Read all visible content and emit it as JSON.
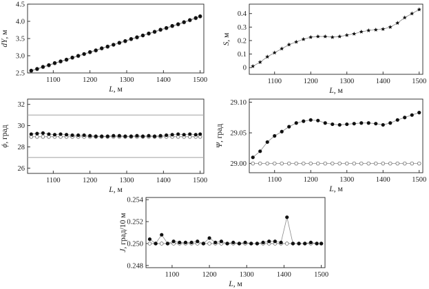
{
  "chart_data": [
    {
      "id": "dy",
      "type": "line",
      "xlabel_var": "L",
      "xlabel_unit": ", м",
      "ylabel_var": "dY",
      "ylabel_unit": ", м",
      "xlim": [
        1030,
        1510
      ],
      "ylim": [
        2.5,
        4.5
      ],
      "xticks": [
        1100,
        1200,
        1300,
        1400,
        1500
      ],
      "xtick_labels": [
        "1100",
        "1200",
        "1300",
        "1400",
        "1500"
      ],
      "yticks": [
        2.5,
        3.0,
        3.5,
        4.0,
        4.5
      ],
      "ytick_labels": [
        "2.5",
        "3.0",
        "3.5",
        "4.0",
        "4.5"
      ],
      "series": [
        {
          "marker": "filled",
          "color": "#111111",
          "line": "#888888",
          "x": [
            1040,
            1056,
            1072,
            1088,
            1104,
            1120,
            1136,
            1152,
            1168,
            1184,
            1200,
            1216,
            1232,
            1248,
            1264,
            1280,
            1296,
            1312,
            1328,
            1344,
            1360,
            1376,
            1392,
            1408,
            1424,
            1440,
            1456,
            1472,
            1488,
            1500
          ],
          "y": [
            2.57,
            2.62,
            2.68,
            2.73,
            2.79,
            2.84,
            2.89,
            2.95,
            3.0,
            3.05,
            3.11,
            3.16,
            3.22,
            3.27,
            3.32,
            3.38,
            3.43,
            3.49,
            3.54,
            3.59,
            3.65,
            3.7,
            3.76,
            3.81,
            3.87,
            3.92,
            3.98,
            4.04,
            4.1,
            4.15
          ]
        },
        {
          "marker": "open",
          "color": "#666666",
          "line": "#888888",
          "x": [
            1040,
            1056,
            1072,
            1088,
            1104,
            1120,
            1136,
            1152,
            1168,
            1184,
            1200,
            1216,
            1232,
            1248,
            1264,
            1280,
            1296,
            1312,
            1328,
            1344,
            1360,
            1376,
            1392,
            1408,
            1424,
            1440,
            1456,
            1472,
            1488,
            1500
          ],
          "y": [
            2.56,
            2.61,
            2.67,
            2.72,
            2.78,
            2.83,
            2.88,
            2.94,
            2.99,
            3.05,
            3.1,
            3.15,
            3.21,
            3.26,
            3.32,
            3.37,
            3.42,
            3.48,
            3.53,
            3.59,
            3.64,
            3.69,
            3.75,
            3.8,
            3.86,
            3.91,
            3.97,
            4.03,
            4.09,
            4.14
          ]
        }
      ]
    },
    {
      "id": "s",
      "type": "line",
      "xlabel_var": "L",
      "xlabel_unit": ", м",
      "ylabel_var": "S",
      "ylabel_unit": ", м",
      "xlim": [
        1030,
        1510
      ],
      "ylim": [
        -0.05,
        0.47
      ],
      "xticks": [
        1100,
        1200,
        1300,
        1400,
        1500
      ],
      "xtick_labels": [
        "1100",
        "1200",
        "1300",
        "1400",
        "1500"
      ],
      "yticks": [
        0,
        0.1,
        0.2,
        0.3,
        0.4
      ],
      "ytick_labels": [
        "0",
        "0.1",
        "0.2",
        "0.3",
        "0.4"
      ],
      "series": [
        {
          "marker": "star",
          "color": "#111111",
          "line": "#888888",
          "x": [
            1040,
            1060,
            1080,
            1100,
            1120,
            1140,
            1160,
            1180,
            1200,
            1220,
            1240,
            1260,
            1280,
            1300,
            1320,
            1340,
            1360,
            1380,
            1400,
            1420,
            1440,
            1460,
            1480,
            1500
          ],
          "y": [
            0.01,
            0.04,
            0.08,
            0.11,
            0.14,
            0.17,
            0.19,
            0.21,
            0.225,
            0.23,
            0.23,
            0.225,
            0.23,
            0.24,
            0.25,
            0.265,
            0.275,
            0.28,
            0.285,
            0.3,
            0.33,
            0.37,
            0.4,
            0.43
          ]
        }
      ]
    },
    {
      "id": "phi",
      "type": "line",
      "xlabel_var": "L",
      "xlabel_unit": ", м",
      "ylabel_var": "ϕ",
      "ylabel_unit": ", град",
      "xlim": [
        1030,
        1510
      ],
      "ylim": [
        25.5,
        32.5
      ],
      "xticks": [
        1100,
        1200,
        1300,
        1400,
        1500
      ],
      "xtick_labels": [
        "1100",
        "1200",
        "1300",
        "1400",
        "1500"
      ],
      "yticks": [
        26,
        28,
        30,
        32
      ],
      "ytick_labels": [
        "26",
        "28",
        "30",
        "32"
      ],
      "hlines": [
        {
          "y": 31,
          "color": "#aaaaaa"
        },
        {
          "y": 27,
          "color": "#aaaaaa"
        }
      ],
      "series": [
        {
          "marker": "filled",
          "color": "#111111",
          "line": "#888888",
          "x": [
            1040,
            1056,
            1072,
            1088,
            1104,
            1120,
            1136,
            1152,
            1168,
            1184,
            1200,
            1216,
            1232,
            1248,
            1264,
            1280,
            1296,
            1312,
            1328,
            1344,
            1360,
            1376,
            1392,
            1408,
            1424,
            1440,
            1456,
            1472,
            1488,
            1500
          ],
          "y": [
            29.2,
            29.25,
            29.3,
            29.2,
            29.15,
            29.2,
            29.15,
            29.1,
            29.1,
            29.1,
            29.05,
            29.0,
            29.0,
            29.0,
            29.05,
            29.05,
            29.0,
            29.0,
            29.05,
            29.0,
            29.05,
            29.0,
            29.05,
            29.1,
            29.15,
            29.2,
            29.15,
            29.2,
            29.15,
            29.2
          ]
        },
        {
          "marker": "open",
          "color": "#666666",
          "line": "#888888",
          "x": [
            1040,
            1056,
            1072,
            1088,
            1104,
            1120,
            1136,
            1152,
            1168,
            1184,
            1200,
            1216,
            1232,
            1248,
            1264,
            1280,
            1296,
            1312,
            1328,
            1344,
            1360,
            1376,
            1392,
            1408,
            1424,
            1440,
            1456,
            1472,
            1488,
            1500
          ],
          "y": [
            28.95,
            28.95,
            28.95,
            28.95,
            28.95,
            28.95,
            28.95,
            28.95,
            28.95,
            28.95,
            28.95,
            28.95,
            28.95,
            28.95,
            28.95,
            28.95,
            28.95,
            28.95,
            28.95,
            28.95,
            28.95,
            28.95,
            28.95,
            28.95,
            28.95,
            28.95,
            28.95,
            28.95,
            28.95,
            28.95
          ]
        }
      ]
    },
    {
      "id": "psi",
      "type": "line",
      "xlabel_var": "L",
      "xlabel_unit": ", м",
      "ylabel_var": "Ψ",
      "ylabel_unit": ", град",
      "xlim": [
        1030,
        1510
      ],
      "ylim": [
        28.985,
        29.105
      ],
      "xticks": [
        1100,
        1200,
        1300,
        1400,
        1500
      ],
      "xtick_labels": [
        "1100",
        "1200",
        "1300",
        "1400",
        "1500"
      ],
      "yticks": [
        29.0,
        29.05,
        29.1
      ],
      "ytick_labels": [
        "29.00",
        "29.05",
        "29.10"
      ],
      "series": [
        {
          "marker": "filled",
          "color": "#111111",
          "line": "#888888",
          "x": [
            1040,
            1060,
            1080,
            1100,
            1120,
            1140,
            1160,
            1180,
            1200,
            1220,
            1240,
            1260,
            1280,
            1300,
            1320,
            1340,
            1360,
            1380,
            1400,
            1420,
            1440,
            1460,
            1480,
            1500
          ],
          "y": [
            29.01,
            29.02,
            29.035,
            29.045,
            29.052,
            29.06,
            29.066,
            29.069,
            29.071,
            29.07,
            29.066,
            29.064,
            29.063,
            29.064,
            29.065,
            29.066,
            29.066,
            29.065,
            29.063,
            29.066,
            29.071,
            29.075,
            29.079,
            29.083
          ]
        },
        {
          "marker": "open",
          "color": "#666666",
          "line": "#888888",
          "x": [
            1040,
            1060,
            1080,
            1100,
            1120,
            1140,
            1160,
            1180,
            1200,
            1220,
            1240,
            1260,
            1280,
            1300,
            1320,
            1340,
            1360,
            1380,
            1400,
            1420,
            1440,
            1460,
            1480,
            1500
          ],
          "y": [
            29.0,
            29.0,
            29.0,
            29.0,
            29.0,
            29.0,
            29.0,
            29.0,
            29.0,
            29.0,
            29.0,
            29.0,
            29.0,
            29.0,
            29.0,
            29.0,
            29.0,
            29.0,
            29.0,
            29.0,
            29.0,
            29.0,
            29.0,
            29.0
          ]
        }
      ]
    },
    {
      "id": "j",
      "type": "line",
      "xlabel_var": "L",
      "xlabel_unit": ", м",
      "ylabel_var": "J",
      "ylabel_unit": ", град/10 м",
      "xlim": [
        1030,
        1510
      ],
      "ylim": [
        0.2478,
        0.2542
      ],
      "xticks": [
        1100,
        1200,
        1300,
        1400,
        1500
      ],
      "xtick_labels": [
        "1100",
        "1200",
        "1300",
        "1400",
        "1500"
      ],
      "yticks": [
        0.248,
        0.25,
        0.252,
        0.254
      ],
      "ytick_labels": [
        "0.248",
        "0.250",
        "0.252",
        "0.254"
      ],
      "series": [
        {
          "marker": "filled",
          "color": "#111111",
          "line": "#888888",
          "x": [
            1040,
            1056,
            1072,
            1088,
            1104,
            1120,
            1136,
            1152,
            1168,
            1184,
            1200,
            1216,
            1232,
            1248,
            1264,
            1280,
            1296,
            1312,
            1328,
            1344,
            1360,
            1376,
            1392,
            1408,
            1424,
            1440,
            1456,
            1472,
            1488,
            1500
          ],
          "y": [
            0.2504,
            0.25,
            0.2508,
            0.25,
            0.2502,
            0.2501,
            0.2501,
            0.2501,
            0.2502,
            0.25,
            0.2505,
            0.2501,
            0.2502,
            0.25,
            0.2501,
            0.25,
            0.2501,
            0.25,
            0.25,
            0.2501,
            0.2502,
            0.2502,
            0.2501,
            0.2524,
            0.25,
            0.25,
            0.25,
            0.2501,
            0.25,
            0.25
          ]
        },
        {
          "marker": "open",
          "color": "#666666",
          "line": "#888888",
          "x": [
            1040,
            1056,
            1072,
            1088,
            1104,
            1120,
            1136,
            1152,
            1168,
            1184,
            1200,
            1216,
            1232,
            1248,
            1264,
            1280,
            1296,
            1312,
            1328,
            1344,
            1360,
            1376,
            1392,
            1408,
            1424,
            1440,
            1456,
            1472,
            1488,
            1500
          ],
          "y": [
            0.25,
            0.25,
            0.25,
            0.25,
            0.25,
            0.25,
            0.25,
            0.25,
            0.25,
            0.25,
            0.25,
            0.25,
            0.25,
            0.25,
            0.25,
            0.25,
            0.25,
            0.25,
            0.25,
            0.25,
            0.25,
            0.25,
            0.25,
            0.25,
            0.25,
            0.25,
            0.25,
            0.25,
            0.25,
            0.25
          ]
        }
      ]
    }
  ]
}
